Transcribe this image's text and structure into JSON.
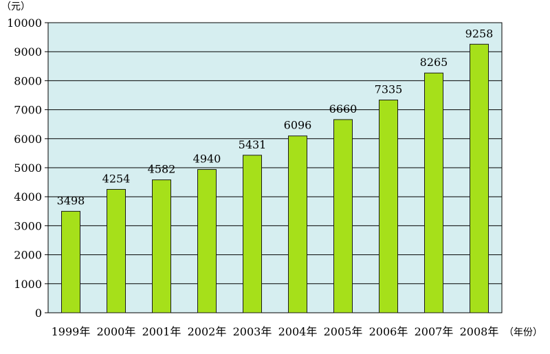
{
  "chart_data": {
    "type": "bar",
    "ylabel": "（元）",
    "xlabel": "（年份）",
    "categories": [
      "1999年",
      "2000年",
      "2001年",
      "2002年",
      "2003年",
      "2004年",
      "2005年",
      "2006年",
      "2007年",
      "2008年"
    ],
    "values": [
      3498,
      4254,
      4582,
      4940,
      5431,
      6096,
      6660,
      7335,
      8265,
      9258
    ],
    "ylim": [
      0,
      10000
    ],
    "yticks": [
      0,
      1000,
      2000,
      3000,
      4000,
      5000,
      6000,
      7000,
      8000,
      9000,
      10000
    ],
    "grid": true,
    "colors": {
      "bar_fill": "#a6e01a",
      "bar_stroke": "#1a1a1a",
      "plot_background": "#d6eef0",
      "gridline": "#000000"
    }
  }
}
